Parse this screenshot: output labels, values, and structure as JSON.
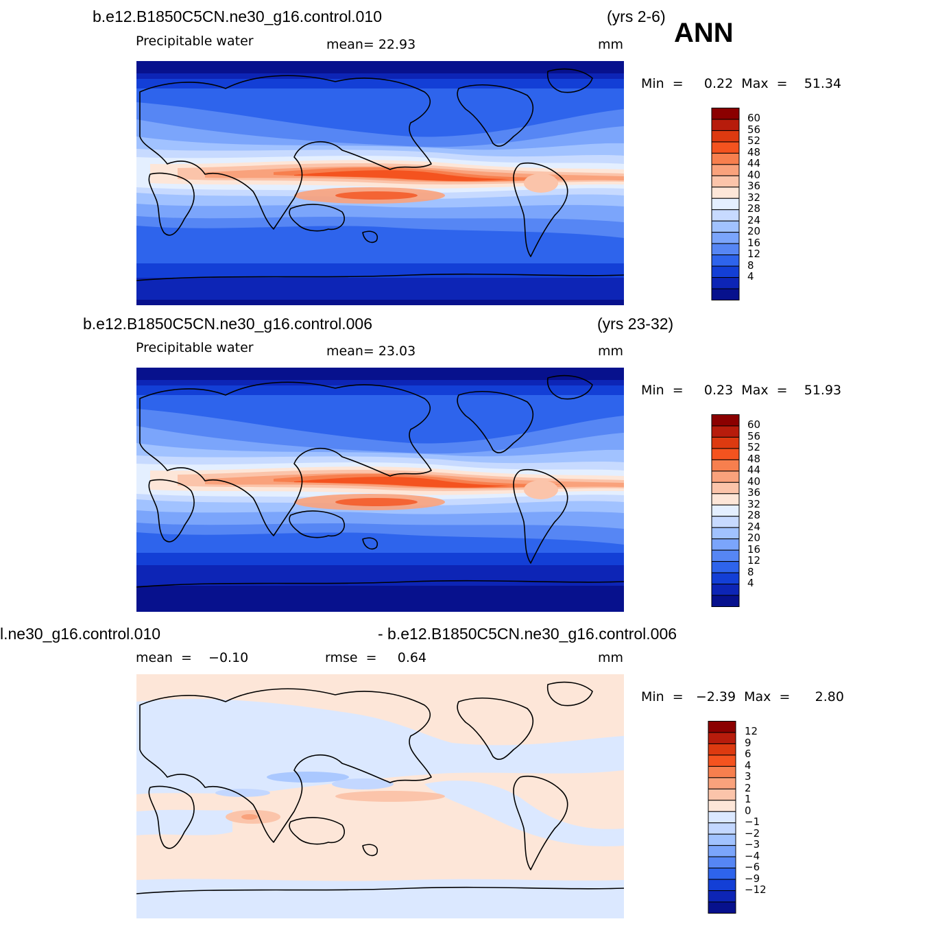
{
  "season": "ANN",
  "panels": [
    {
      "case": "b.e12.B1850C5CN.ne30_g16.control.010",
      "years": "(yrs 2-6)",
      "variable": "Precipitable  water",
      "stat_text": "mean=   22.93",
      "units": "mm",
      "minmax": "Min  =     0.22  Max  =    51.34",
      "levels": [
        "60",
        "56",
        "52",
        "48",
        "44",
        "40",
        "36",
        "32",
        "28",
        "24",
        "20",
        "16",
        "12",
        "8",
        "4"
      ],
      "mean": 22.93,
      "min": 0.22,
      "max": 51.34
    },
    {
      "case": "b.e12.B1850C5CN.ne30_g16.control.006",
      "years": "(yrs 23-32)",
      "variable": "Precipitable  water",
      "stat_text": "mean=   23.03",
      "units": "mm",
      "minmax": "Min  =     0.23  Max  =    51.93",
      "levels": [
        "60",
        "56",
        "52",
        "48",
        "44",
        "40",
        "36",
        "32",
        "28",
        "24",
        "20",
        "16",
        "12",
        "8",
        "4"
      ],
      "mean": 23.03,
      "min": 0.23,
      "max": 51.93
    },
    {
      "case_left": "l.ne30_g16.control.010",
      "case_right": "- b.e12.B1850C5CN.ne30_g16.control.006",
      "stat_mean": "mean  =    −0.10",
      "stat_rmse": "rmse  =     0.64",
      "units": "mm",
      "minmax": "Min  =   −2.39  Max  =      2.80",
      "levels": [
        "12",
        "9",
        "6",
        "4",
        "3",
        "2",
        "1",
        "0",
        "−1",
        "−2",
        "−3",
        "−4",
        "−6",
        "−9",
        "−12"
      ],
      "mean": -0.1,
      "rmse": 0.64,
      "min": -2.39,
      "max": 2.8
    }
  ],
  "colors": {
    "abs": [
      "#8b0000",
      "#b71c0c",
      "#dd3a10",
      "#f4531f",
      "#f77f4e",
      "#f9a27c",
      "#fbc4aa",
      "#fde6d8",
      "#e4efff",
      "#c7daff",
      "#a1c2ff",
      "#7ba5fb",
      "#5686f4",
      "#2e64ec",
      "#133fd6",
      "#0d25b6",
      "#07118d"
    ],
    "diff": [
      "#8b0000",
      "#b71c0c",
      "#dd3a10",
      "#f4531f",
      "#f77f4e",
      "#f9a27c",
      "#fbc4aa",
      "#fde6d8",
      "#dbe8ff",
      "#c3d7ff",
      "#a1c2ff",
      "#7ba5fb",
      "#5686f4",
      "#2e64ec",
      "#133fd6",
      "#0d25b6",
      "#07118d"
    ]
  }
}
